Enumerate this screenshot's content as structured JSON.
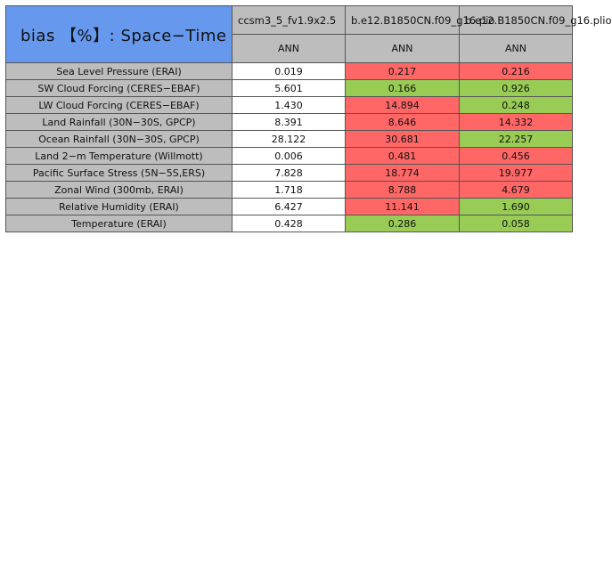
{
  "chart_data": {
    "type": "table",
    "title": "bias 【%】: Space−Time",
    "models": [
      "ccsm3_5_fv1.9x2.5",
      "b.e12.B1850CN.f09_g16.pio",
      "b.e12.B1850CN.f09_g16.plio"
    ],
    "season_label": "ANN",
    "rows": [
      {
        "label": "Sea Level Pressure (ERAI)",
        "values": [
          "0.019",
          "0.217",
          "0.216"
        ]
      },
      {
        "label": "SW Cloud Forcing (CERES−EBAF)",
        "values": [
          "5.601",
          "0.166",
          "0.926"
        ]
      },
      {
        "label": "LW Cloud Forcing (CERES−EBAF)",
        "values": [
          "1.430",
          "14.894",
          "0.248"
        ]
      },
      {
        "label": "Land Rainfall (30N−30S, GPCP)",
        "values": [
          "8.391",
          "8.646",
          "14.332"
        ]
      },
      {
        "label": "Ocean Rainfall (30N−30S, GPCP)",
        "values": [
          "28.122",
          "30.681",
          "22.257"
        ]
      },
      {
        "label": "Land 2−m Temperature (Willmott)",
        "values": [
          "0.006",
          "0.481",
          "0.456"
        ]
      },
      {
        "label": "Pacific Surface Stress (5N−5S,ERS)",
        "values": [
          "7.828",
          "18.774",
          "19.977"
        ]
      },
      {
        "label": "Zonal Wind (300mb, ERAI)",
        "values": [
          "1.718",
          "8.788",
          "4.679"
        ]
      },
      {
        "label": "Relative Humidity (ERAI)",
        "values": [
          "6.427",
          "11.141",
          "1.690"
        ]
      },
      {
        "label": "Temperature (ERAI)",
        "values": [
          "0.428",
          "0.286",
          "0.058"
        ]
      }
    ],
    "cell_status": [
      [
        "base",
        "worse",
        "worse"
      ],
      [
        "base",
        "better",
        "better"
      ],
      [
        "base",
        "worse",
        "better"
      ],
      [
        "base",
        "worse",
        "worse"
      ],
      [
        "base",
        "worse",
        "better"
      ],
      [
        "base",
        "worse",
        "worse"
      ],
      [
        "base",
        "worse",
        "worse"
      ],
      [
        "base",
        "worse",
        "worse"
      ],
      [
        "base",
        "worse",
        "better"
      ],
      [
        "base",
        "better",
        "better"
      ]
    ],
    "colors": {
      "title_bg": "#6699ee",
      "header_bg": "#bdbdbd",
      "base": "#ffffff",
      "worse": "#ff6666",
      "better": "#99cc55"
    }
  }
}
